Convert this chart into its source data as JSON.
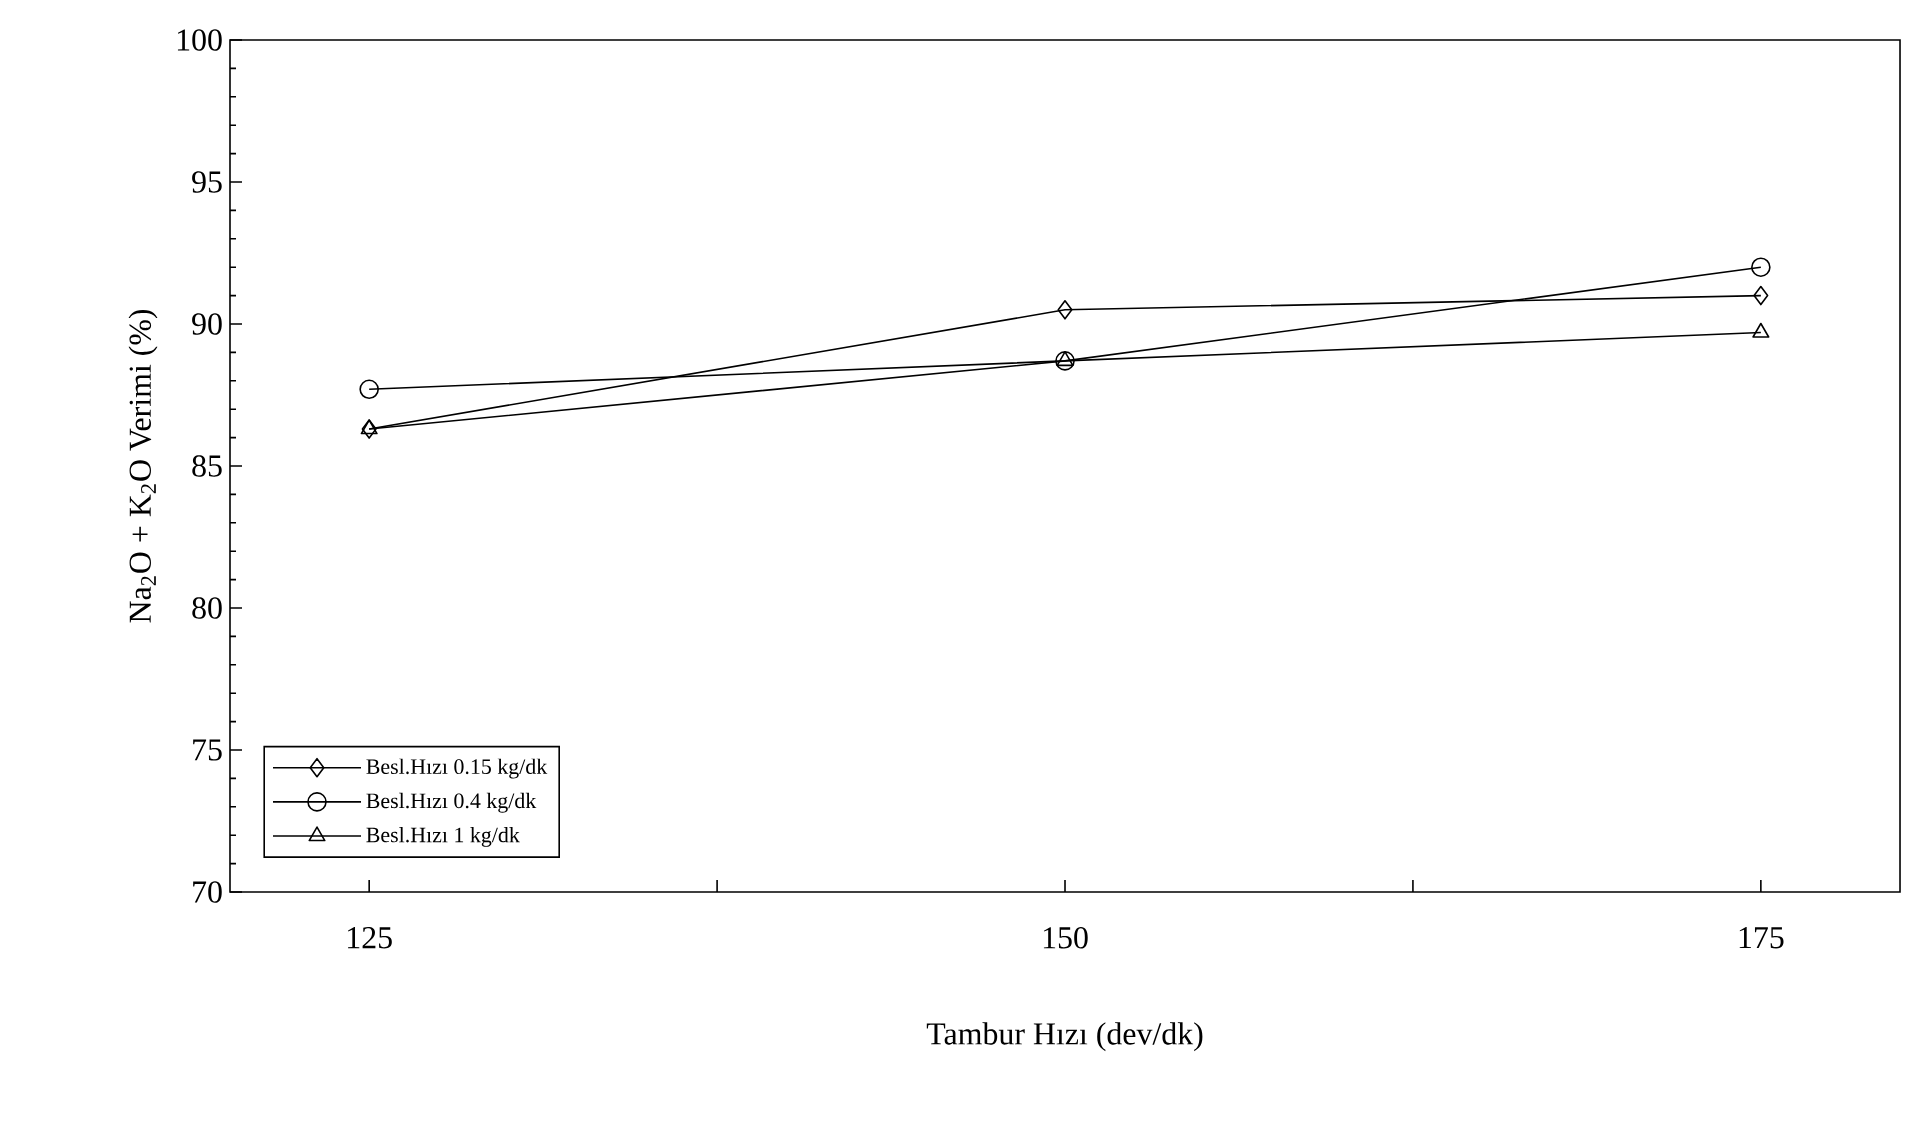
{
  "chart_data": {
    "type": "line",
    "xlabel": "Tambur Hızı (dev/dk)",
    "ylabel": "Na$_{2}$O + K$_{2}$O  Verimi  (%)",
    "x": [
      125,
      150,
      175
    ],
    "series": [
      {
        "name": "Besl.Hızı 0.15 kg/dk",
        "color": "#000000",
        "marker": "diamond",
        "values": [
          86.3,
          90.5,
          91.0
        ]
      },
      {
        "name": "Besl.Hızı 0.4 kg/dk",
        "color": "#000000",
        "marker": "circle",
        "values": [
          87.7,
          88.7,
          92.0
        ]
      },
      {
        "name": "Besl.Hızı 1 kg/dk",
        "color": "#000000",
        "marker": "triangle",
        "values": [
          86.3,
          88.7,
          89.7
        ]
      }
    ],
    "xlim": [
      120,
      180
    ],
    "xticks": [
      125,
      {
        "value": 137.5,
        "label": null
      },
      150,
      {
        "value": 162.5,
        "label": null
      },
      175
    ],
    "ylim": [
      70,
      100
    ],
    "yticks": [
      70,
      75,
      80,
      85,
      90,
      95,
      100
    ],
    "legend": "bottom left",
    "grid": false,
    "line_style": "solid"
  }
}
